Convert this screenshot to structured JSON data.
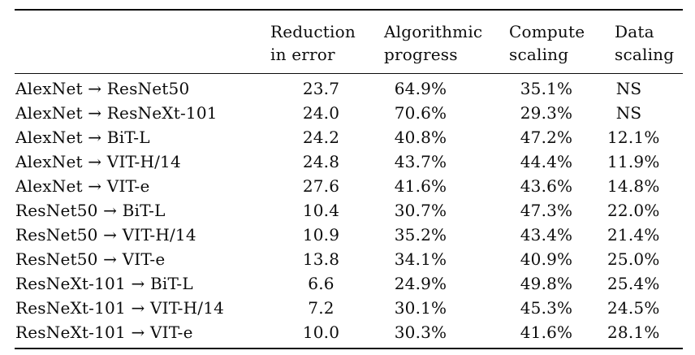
{
  "page": {
    "background_color": "#ffffff",
    "text_color": "#0c0c0c"
  },
  "table": {
    "kind": "academic-results-table",
    "column_headers": [
      {
        "line1": "Reduction",
        "line2": "in error"
      },
      {
        "line1": "Algorithmic",
        "line2": "progress"
      },
      {
        "line1": "Compute",
        "line2": "scaling"
      },
      {
        "line1": "Data",
        "line2": "scaling"
      }
    ],
    "rows": [
      {
        "label": "AlexNet → ResNet50",
        "values": [
          "23.7",
          "64.9%",
          "35.1%",
          "NS"
        ]
      },
      {
        "label": "AlexNet → ResNeXt-101",
        "values": [
          "24.0",
          "70.6%",
          "29.3%",
          "NS"
        ]
      },
      {
        "label": "AlexNet → BiT-L",
        "values": [
          "24.2",
          "40.8%",
          "47.2%",
          "12.1%"
        ]
      },
      {
        "label": "AlexNet → VIT-H/14",
        "values": [
          "24.8",
          "43.7%",
          "44.4%",
          "11.9%"
        ]
      },
      {
        "label": "AlexNet → VIT-e",
        "values": [
          "27.6",
          "41.6%",
          "43.6%",
          "14.8%"
        ]
      },
      {
        "label": "ResNet50 → BiT-L",
        "values": [
          "10.4",
          "30.7%",
          "47.3%",
          "22.0%"
        ]
      },
      {
        "label": "ResNet50 → VIT-H/14",
        "values": [
          "10.9",
          "35.2%",
          "43.4%",
          "21.4%"
        ]
      },
      {
        "label": "ResNet50 → VIT-e",
        "values": [
          "13.8",
          "34.1%",
          "40.9%",
          "25.0%"
        ]
      },
      {
        "label": "ResNeXt-101 → BiT-L",
        "values": [
          "6.6",
          "24.9%",
          "49.8%",
          "25.4%"
        ]
      },
      {
        "label": "ResNeXt-101 → VIT-H/14",
        "values": [
          "7.2",
          "30.1%",
          "45.3%",
          "24.5%"
        ]
      },
      {
        "label": "ResNeXt-101 → VIT-e",
        "values": [
          "10.0",
          "30.3%",
          "41.6%",
          "28.1%"
        ]
      }
    ]
  }
}
